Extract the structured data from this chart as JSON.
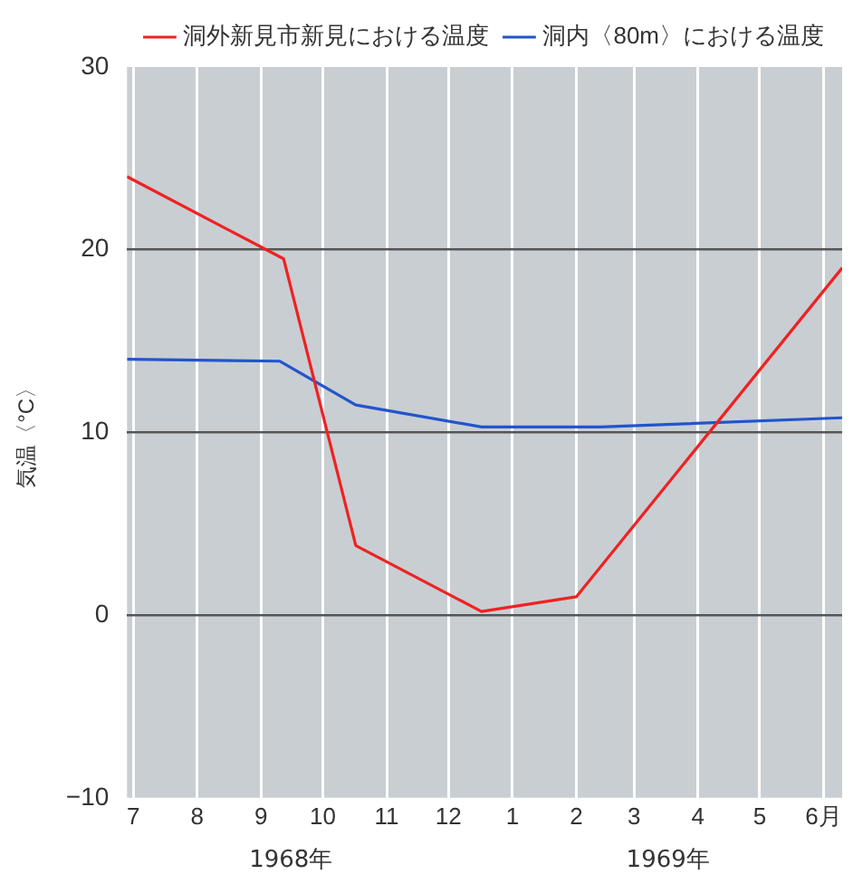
{
  "chart_data": {
    "type": "line",
    "ylabel": "気温〈°C〉",
    "x": [
      "1968-07-13",
      "1968-09-27",
      "1968-11-01",
      "1969-01-01",
      "1969-02-16",
      "1969-06-25"
    ],
    "series": [
      {
        "name": "洞外新見市新見における温度",
        "color": "#ee2222",
        "values": [
          24,
          19.5,
          3.8,
          0.2,
          1,
          19
        ]
      },
      {
        "name": "洞内〈80m〉における温度",
        "color": "#2255cc",
        "x": [
          "1968-07-13",
          "1968-09-25",
          "1968-11-01",
          "1969-01-01",
          "1969-02-28",
          "1969-06-25"
        ],
        "values": [
          14,
          13.9,
          11.5,
          10.3,
          10.3,
          10.8
        ]
      }
    ],
    "xlim": [
      "1968-07-13",
      "1969-06-25"
    ],
    "xticks": [
      {
        "value": "1968-07-16",
        "label": "7"
      },
      {
        "value": "1968-08-16",
        "label": "8"
      },
      {
        "value": "1968-09-16",
        "label": "9"
      },
      {
        "value": "1968-10-16",
        "label": "10"
      },
      {
        "value": "1968-11-16",
        "label": "11"
      },
      {
        "value": "1968-12-16",
        "label": "12"
      },
      {
        "value": "1969-01-16",
        "label": "1"
      },
      {
        "value": "1969-02-16",
        "label": "2"
      },
      {
        "value": "1969-03-16",
        "label": "3"
      },
      {
        "value": "1969-04-16",
        "label": "4"
      },
      {
        "value": "1969-05-16",
        "label": "5"
      },
      {
        "value": "1969-06-16",
        "label": "6月"
      }
    ],
    "ylim": [
      -10,
      30
    ],
    "yticks": [
      -10,
      0,
      10,
      20,
      30
    ],
    "annotations": [
      "1968年",
      "1969年"
    ],
    "grid": true,
    "legend": "top right",
    "marker": "none",
    "line_style": "solid"
  }
}
